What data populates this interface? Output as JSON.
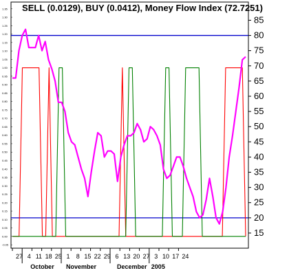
{
  "chart_data": {
    "type": "line",
    "title": "SELL (0.0129), BUY (0.0412), Money Flow Index (72.7251)",
    "left_axis": {
      "ylim": [
        -0.07,
        1.39
      ],
      "ticks": [
        "-0.05",
        "0.00",
        "0.05",
        "0.10",
        "0.15",
        "0.20",
        "0.25",
        "0.30",
        "0.35",
        "0.40",
        "0.45",
        "0.50",
        "0.55",
        "0.60",
        "0.65",
        "0.70",
        "0.75",
        "0.80",
        "0.85",
        "0.90",
        "0.95",
        "1.00",
        "1.05",
        "1.10",
        "1.15",
        "1.20",
        "1.25",
        "1.30",
        "1.35"
      ]
    },
    "right_axis": {
      "ylim": [
        12.5,
        87.5
      ],
      "ticks": [
        "15",
        "20",
        "25",
        "30",
        "35",
        "40",
        "45",
        "50",
        "55",
        "60",
        "65",
        "70",
        "75",
        "80",
        "85"
      ]
    },
    "x_ticks": [
      "27",
      "4",
      "11",
      "18",
      "25",
      "1",
      "8",
      "15",
      "22",
      "29",
      "6",
      "13",
      "20",
      "27",
      "3",
      "10",
      "17",
      "24"
    ],
    "months": [
      "October",
      "November",
      "December",
      "2005"
    ],
    "reference_lines": [
      20,
      80
    ],
    "series": [
      {
        "name": "SELL",
        "axis": "left",
        "color": "#ff0000",
        "values": [
          0.0,
          0.0,
          0.0,
          1.0,
          1.0,
          1.0,
          1.0,
          1.0,
          1.0,
          0.0,
          0.0,
          1.0,
          0.0,
          0.0,
          0.0,
          0.0,
          0.0,
          0.0,
          0.0,
          0.0,
          0.0,
          0.0,
          0.0,
          0.0,
          0.0,
          0.0,
          0.0,
          0.0,
          0.0,
          0.0,
          0.0,
          0.0,
          0.0,
          1.0,
          0.0,
          0.0,
          0.0,
          0.0,
          0.0,
          0.0,
          0.0,
          0.0,
          0.0,
          0.0,
          0.0,
          0.0,
          0.0,
          0.0,
          0.0,
          0.0,
          0.0,
          0.0,
          0.0,
          0.0,
          0.0,
          0.0,
          0.0,
          0.0,
          0.0,
          0.0,
          0.0,
          0.0,
          0.0,
          0.0,
          1.0,
          1.0,
          1.0,
          1.0,
          1.0,
          1.0,
          0.0
        ]
      },
      {
        "name": "BUY",
        "axis": "left",
        "color": "#008000",
        "values": [
          0.0,
          0.0,
          0.0,
          0.0,
          0.0,
          0.0,
          0.0,
          0.0,
          0.0,
          0.0,
          0.0,
          0.0,
          0.0,
          0.0,
          1.0,
          1.0,
          0.0,
          0.0,
          0.0,
          0.0,
          0.0,
          0.0,
          0.0,
          0.0,
          0.0,
          0.0,
          0.0,
          0.0,
          0.0,
          0.0,
          0.0,
          0.0,
          0.0,
          0.0,
          0.0,
          1.0,
          1.0,
          0.0,
          0.0,
          0.0,
          0.0,
          0.0,
          0.0,
          0.0,
          0.0,
          0.0,
          1.0,
          1.0,
          0.0,
          0.0,
          0.0,
          0.0,
          1.0,
          1.0,
          1.0,
          1.0,
          1.0,
          0.0,
          0.0,
          0.0,
          0.0,
          0.0,
          0.0,
          0.0,
          0.0,
          0.0,
          0.0,
          0.0,
          0.0,
          0.0,
          0.0
        ]
      },
      {
        "name": "Money Flow Index",
        "axis": "right",
        "color": "#ff00ff",
        "values": [
          66,
          66,
          75,
          80,
          82,
          76,
          76,
          76,
          80,
          75,
          78,
          72,
          69,
          65,
          58,
          58,
          55,
          48,
          45,
          44,
          40,
          36,
          33,
          27,
          35,
          42,
          48,
          47,
          40,
          42,
          42,
          41,
          32,
          40,
          44,
          47,
          47,
          48,
          51,
          49,
          45,
          46,
          50,
          49,
          47,
          44,
          36,
          33,
          34,
          37,
          40,
          40,
          37,
          33,
          30,
          27,
          22,
          20,
          21,
          26,
          33,
          27,
          20,
          18,
          22,
          30,
          40,
          47,
          55,
          63,
          72,
          73
        ]
      }
    ]
  }
}
